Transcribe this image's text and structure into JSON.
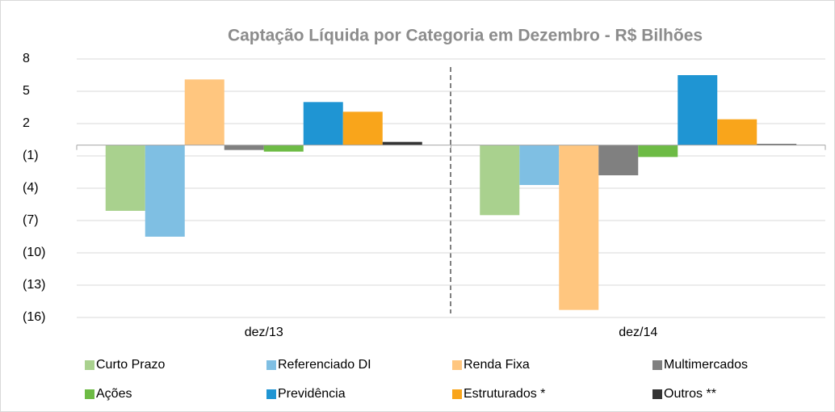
{
  "chart_data": {
    "type": "bar",
    "title": "Captação Líquida por Categoria em Dezembro - R$ Bilhões",
    "categories": [
      "dez/13",
      "dez/14"
    ],
    "series": [
      {
        "name": "Curto Prazo",
        "color": "#a9d18e",
        "values": [
          -6.1,
          -6.5
        ]
      },
      {
        "name": "Referenciado DI",
        "color": "#7fbfe3",
        "values": [
          -8.5,
          -3.7
        ]
      },
      {
        "name": "Renda Fixa",
        "color": "#ffc67f",
        "values": [
          6.1,
          -15.3
        ]
      },
      {
        "name": "Multimercados",
        "color": "#808080",
        "values": [
          -0.45,
          -2.8
        ]
      },
      {
        "name": "Ações",
        "color": "#6dbb45",
        "values": [
          -0.6,
          -1.1
        ]
      },
      {
        "name": "Previdência",
        "color": "#1f95d3",
        "values": [
          4.0,
          6.5
        ]
      },
      {
        "name": "Estruturados *",
        "color": "#f9a51b",
        "values": [
          3.1,
          2.4
        ]
      },
      {
        "name": "Outros **",
        "color": "#333333",
        "values": [
          0.3,
          0.1
        ]
      }
    ],
    "ylim": [
      -16,
      8
    ],
    "yticks": [
      8,
      5,
      2,
      {
        "value": -1,
        "label": "(1)"
      },
      {
        "value": -4,
        "label": "(4)"
      },
      {
        "value": -7,
        "label": "(7)"
      },
      {
        "value": -10,
        "label": "(10)"
      },
      {
        "value": -13,
        "label": "(13)"
      },
      {
        "value": -16,
        "label": "(16)"
      }
    ],
    "grid": true,
    "legend": "bottom"
  }
}
